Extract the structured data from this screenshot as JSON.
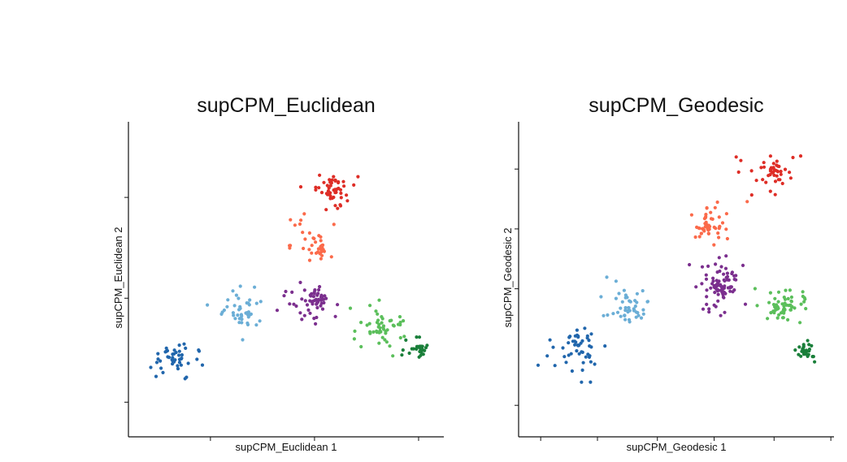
{
  "chart_data": [
    {
      "type": "scatter",
      "title": "supCPM_Euclidean",
      "xlabel": "supCPM_Euclidean 1",
      "ylabel": "supCPM_Euclidean 2",
      "xlim": [
        0,
        100
      ],
      "ylim": [
        0,
        100
      ],
      "xticks": [
        26,
        59,
        92
      ],
      "yticks": [
        11,
        44,
        76
      ],
      "tick_labels_shown": false,
      "grid": false,
      "legend": "none",
      "clusters": [
        {
          "color": "#2166ac",
          "n": 45,
          "center": [
            14,
            25
          ],
          "spread": [
            6,
            4.8
          ],
          "core": [
            16,
            26
          ],
          "seed": 11
        },
        {
          "color": "#6baed6",
          "n": 45,
          "center": [
            36,
            40
          ],
          "spread": [
            5.2,
            4
          ],
          "core": [
            37,
            39
          ],
          "seed": 23
        },
        {
          "color": "#fb6a4a",
          "n": 40,
          "center": [
            57,
            63
          ],
          "spread": [
            5,
            4
          ],
          "core": [
            60,
            60
          ],
          "seed": 37
        },
        {
          "color": "#de2d26",
          "n": 50,
          "center": [
            65,
            78
          ],
          "spread": [
            5.2,
            4.2
          ],
          "core": [
            65,
            79
          ],
          "seed": 41
        },
        {
          "color": "#7b2f8e",
          "n": 60,
          "center": [
            58,
            42
          ],
          "spread": [
            4.8,
            4.2
          ],
          "core": [
            59,
            44
          ],
          "seed": 53
        },
        {
          "color": "#5bbf5b",
          "n": 50,
          "center": [
            79,
            35
          ],
          "spread": [
            5,
            4.5
          ],
          "core": [
            80,
            34
          ],
          "seed": 67
        },
        {
          "color": "#1a7f3a",
          "n": 28,
          "center": [
            91,
            28
          ],
          "spread": [
            3.2,
            2
          ],
          "core": [
            92,
            28
          ],
          "seed": 79
        }
      ]
    },
    {
      "type": "scatter",
      "title": "supCPM_Geodesic",
      "xlabel": "supCPM_Geodesic 1",
      "ylabel": "supCPM_Geodesic 2",
      "xlim": [
        0,
        100
      ],
      "ylim": [
        0,
        100
      ],
      "xticks": [
        7,
        25,
        44,
        62,
        81,
        99
      ],
      "yticks": [
        10,
        47,
        66,
        85
      ],
      "tick_labels_shown": false,
      "grid": false,
      "legend": "none",
      "clusters": [
        {
          "color": "#2166ac",
          "n": 50,
          "center": [
            18,
            25
          ],
          "spread": [
            5.5,
            5
          ],
          "core": [
            19,
            29
          ],
          "seed": 13
        },
        {
          "color": "#6baed6",
          "n": 50,
          "center": [
            34,
            42
          ],
          "spread": [
            5,
            5
          ],
          "core": [
            35,
            40
          ],
          "seed": 29
        },
        {
          "color": "#fb6a4a",
          "n": 50,
          "center": [
            60,
            67
          ],
          "spread": [
            5,
            4.2
          ],
          "core": [
            61,
            67
          ],
          "seed": 31
        },
        {
          "color": "#de2d26",
          "n": 45,
          "center": [
            80,
            83
          ],
          "spread": [
            4.5,
            4
          ],
          "core": [
            82,
            84
          ],
          "seed": 43
        },
        {
          "color": "#7b2f8e",
          "n": 85,
          "center": [
            64,
            48
          ],
          "spread": [
            4.5,
            4.5
          ],
          "core": [
            64,
            48
          ],
          "seed": 59
        },
        {
          "color": "#5bbf5b",
          "n": 60,
          "center": [
            85,
            42
          ],
          "spread": [
            5,
            4.2
          ],
          "core": [
            83,
            40
          ],
          "seed": 61
        },
        {
          "color": "#1a7f3a",
          "n": 30,
          "center": [
            91,
            28
          ],
          "spread": [
            2.2,
            3.5
          ],
          "core": [
            91,
            27
          ],
          "seed": 71
        }
      ]
    }
  ]
}
